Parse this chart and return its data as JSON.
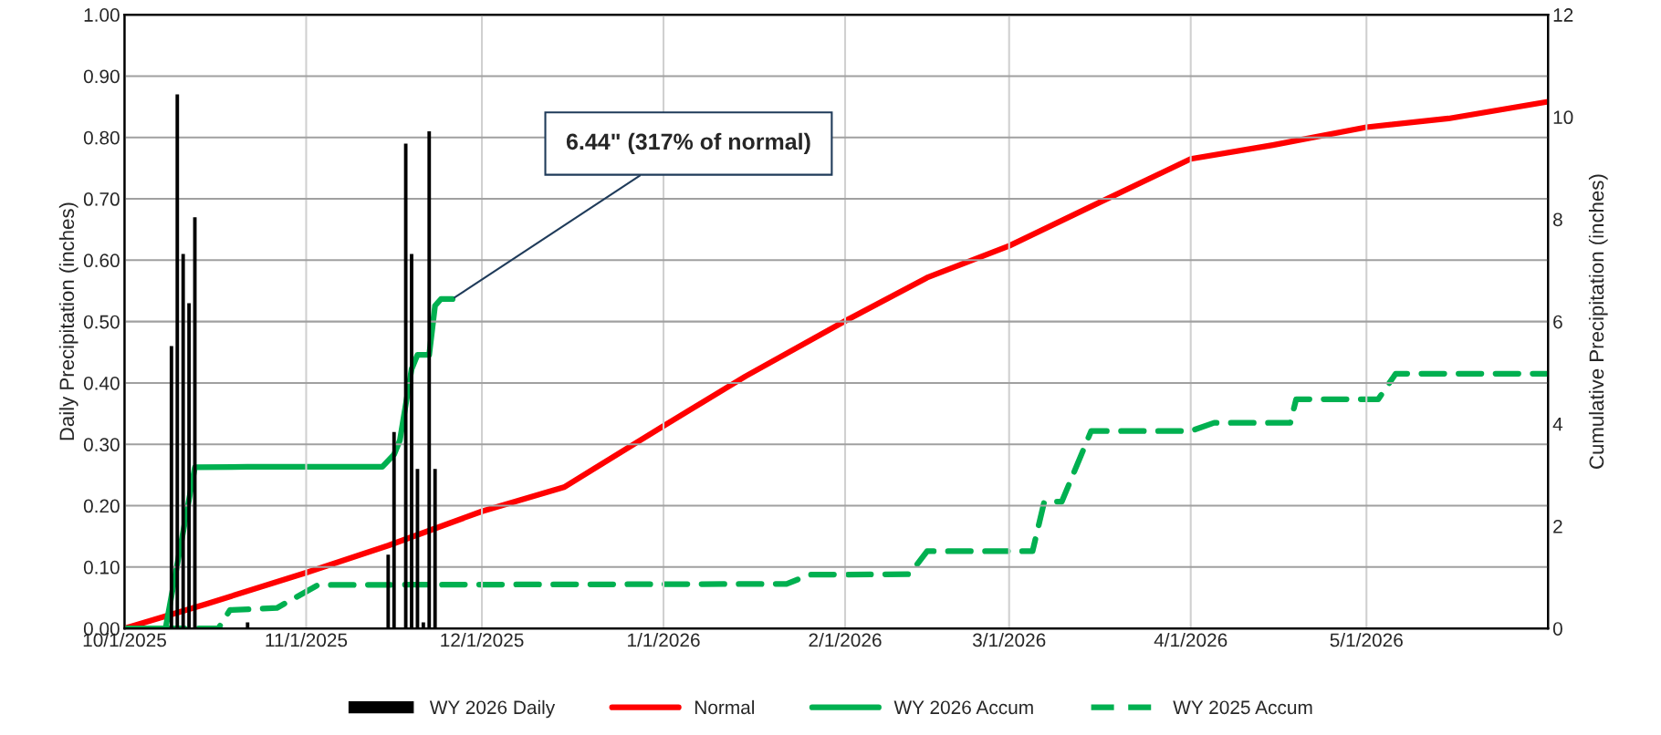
{
  "chart_data": {
    "type": "bar",
    "ylabel": "Daily Precipitation (inches)",
    "y2label": "Cumulative Precipitation (inches)",
    "xlim": [
      "2025-10-01",
      "2026-06-01"
    ],
    "xticks": [
      {
        "value": "2025-10-01",
        "label": "10/1/2025"
      },
      {
        "value": "2025-11-01",
        "label": "11/1/2025"
      },
      {
        "value": "2025-12-01",
        "label": "12/1/2025"
      },
      {
        "value": "2026-01-01",
        "label": "1/1/2026"
      },
      {
        "value": "2026-02-01",
        "label": "2/1/2026"
      },
      {
        "value": "2026-03-01",
        "label": "3/1/2026"
      },
      {
        "value": "2026-04-01",
        "label": "4/1/2026"
      },
      {
        "value": "2026-05-01",
        "label": "5/1/2026"
      }
    ],
    "ylim": [
      0,
      1
    ],
    "yticks": [
      {
        "value": 0,
        "label": "0.00"
      },
      {
        "value": 0.1,
        "label": "0.10"
      },
      {
        "value": 0.2,
        "label": "0.20"
      },
      {
        "value": 0.3,
        "label": "0.30"
      },
      {
        "value": 0.4,
        "label": "0.40"
      },
      {
        "value": 0.5,
        "label": "0.50"
      },
      {
        "value": 0.6,
        "label": "0.60"
      },
      {
        "value": 0.7,
        "label": "0.70"
      },
      {
        "value": 0.8,
        "label": "0.80"
      },
      {
        "value": 0.9,
        "label": "0.90"
      },
      {
        "value": 1,
        "label": "1.00"
      }
    ],
    "y2lim": [
      0,
      12
    ],
    "y2ticks": [
      0,
      2,
      4,
      6,
      8,
      10,
      12
    ],
    "grid": true,
    "legend": "bottom",
    "annotations": [
      {
        "text": "6.44\" (317% of normal)",
        "x": "2025-11-26",
        "y": 0.537
      }
    ],
    "series": [
      {
        "name": "WY 2026 Daily",
        "axis": "y",
        "color": "#000000",
        "x": [
          "2025-10-09",
          "2025-10-10",
          "2025-10-11",
          "2025-10-12",
          "2025-10-13",
          "2025-10-22",
          "2025-11-15",
          "2025-11-16",
          "2025-11-18",
          "2025-11-19",
          "2025-11-20",
          "2025-11-21",
          "2025-11-22",
          "2025-11-23"
        ],
        "values": [
          0.46,
          0.87,
          0.61,
          0.53,
          0.67,
          0.01,
          0.12,
          0.32,
          0.79,
          0.61,
          0.26,
          0.01,
          0.81,
          0.26
        ]
      },
      {
        "name": "Normal",
        "type": "line",
        "axis": "y2",
        "color": "#ff0000",
        "line_style": "solid",
        "x": [
          "2025-10-01",
          "2025-10-15",
          "2025-11-01",
          "2025-11-15",
          "2025-12-01",
          "2025-12-15",
          "2026-01-01",
          "2026-01-15",
          "2026-02-01",
          "2026-02-15",
          "2026-03-01",
          "2026-03-15",
          "2026-04-01",
          "2026-04-15",
          "2026-05-01",
          "2026-05-15",
          "2026-06-01"
        ],
        "values": [
          0,
          0.48,
          1.09,
          1.62,
          2.29,
          2.76,
          3.96,
          4.93,
          6.01,
          6.86,
          7.48,
          8.25,
          9.18,
          9.45,
          9.8,
          9.97,
          10.3
        ]
      },
      {
        "name": "WY 2026 Accum",
        "type": "line",
        "axis": "y2",
        "color": "#00b050",
        "line_style": "solid",
        "x": [
          "2025-10-01",
          "2025-10-08",
          "2025-10-13",
          "2025-10-22",
          "2025-11-14",
          "2025-11-16",
          "2025-11-17",
          "2025-11-19",
          "2025-11-20",
          "2025-11-22",
          "2025-11-23",
          "2025-11-24",
          "2025-11-26"
        ],
        "values": [
          0,
          0,
          3.15,
          3.16,
          3.16,
          3.4,
          3.68,
          5.07,
          5.35,
          5.35,
          6.31,
          6.44,
          6.44
        ]
      },
      {
        "name": "WY 2025 Accum",
        "type": "line",
        "axis": "y2",
        "color": "#00b050",
        "line_style": "dashed",
        "x": [
          "2025-10-01",
          "2025-10-17",
          "2025-10-19",
          "2025-10-27",
          "2025-11-03",
          "2026-01-22",
          "2026-01-26",
          "2026-02-12",
          "2026-02-15",
          "2026-03-05",
          "2026-03-07",
          "2026-03-10",
          "2026-03-15",
          "2026-04-01",
          "2026-04-05",
          "2026-04-18",
          "2026-04-19",
          "2026-05-03",
          "2026-05-06",
          "2026-06-01"
        ],
        "values": [
          0,
          0,
          0.36,
          0.4,
          0.85,
          0.87,
          1.05,
          1.06,
          1.51,
          1.51,
          2.48,
          2.48,
          3.86,
          3.86,
          4.02,
          4.02,
          4.48,
          4.48,
          4.98,
          4.98
        ]
      }
    ]
  }
}
